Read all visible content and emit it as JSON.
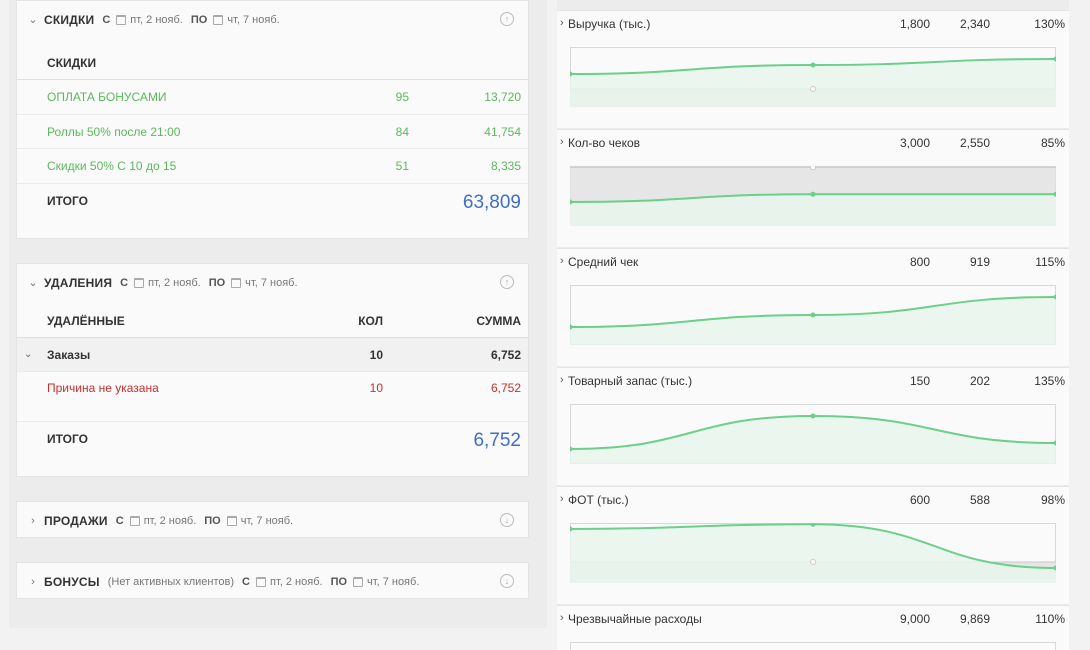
{
  "left": {
    "discounts": {
      "title": "СКИДКИ",
      "from_kw": "С",
      "from_date": "пт, 2 нояб.",
      "to_kw": "ПО",
      "to_date": "чт, 7 нояб.",
      "column_header": "СКИДКИ",
      "rows": [
        {
          "name": "ОПЛАТА БОНУСАМИ",
          "qty": "95",
          "sum": "13,720"
        },
        {
          "name": "Роллы 50% после 21:00",
          "qty": "84",
          "sum": "41,754"
        },
        {
          "name": "Скидки 50% С 10 до 15",
          "qty": "51",
          "sum": "8,335"
        }
      ],
      "total_label": "ИТОГО",
      "total_value": "63,809"
    },
    "deletions": {
      "title": "УДАЛЕНИЯ",
      "from_kw": "С",
      "from_date": "пт, 2 нояб.",
      "to_kw": "ПО",
      "to_date": "чт, 7 нояб.",
      "headers": {
        "name": "УДАЛЁННЫЕ",
        "qty": "КОЛ",
        "sum": "СУММА"
      },
      "group": {
        "name": "Заказы",
        "qty": "10",
        "sum": "6,752"
      },
      "reason": {
        "name": "Причина не указана",
        "qty": "10",
        "sum": "6,752"
      },
      "total_label": "ИТОГО",
      "total_value": "6,752"
    },
    "sales": {
      "title": "ПРОДАЖИ",
      "from_kw": "С",
      "from_date": "пт, 2 нояб.",
      "to_kw": "ПО",
      "to_date": "чт, 7 нояб."
    },
    "bonuses": {
      "title": "БОНУСЫ",
      "note": "(Нет активных клиентов)",
      "from_kw": "С",
      "from_date": "пт, 2 нояб.",
      "to_kw": "ПО",
      "to_date": "чт, 7 нояб."
    }
  },
  "metrics": [
    {
      "name": "Выручка (тыс.)",
      "plan": "1,800",
      "fact": "2,340",
      "pct": "130%",
      "trend": [
        0.55,
        0.7,
        0.8
      ],
      "baseline": 0.3
    },
    {
      "name": "Кол-во чеков",
      "plan": "3,000",
      "fact": "2,550",
      "pct": "85%",
      "trend": [
        0.4,
        0.53,
        0.53
      ],
      "baseline": 0.98
    },
    {
      "name": "Средний чек",
      "plan": "800",
      "fact": "919",
      "pct": "115%",
      "trend": [
        0.3,
        0.5,
        0.8
      ],
      "baseline": 0.0
    },
    {
      "name": "Товарный запас (тыс.)",
      "plan": "150",
      "fact": "202",
      "pct": "135%",
      "trend": [
        0.25,
        0.8,
        0.35
      ],
      "baseline": 0.0
    },
    {
      "name": "ФОТ (тыс.)",
      "plan": "600",
      "fact": "588",
      "pct": "98%",
      "trend": [
        0.9,
        0.98,
        0.25
      ],
      "baseline": 0.35
    },
    {
      "name": "Чрезвычайные расходы",
      "plan": "9,000",
      "fact": "9,869",
      "pct": "110%",
      "trend": [],
      "baseline": 0
    }
  ],
  "colors": {
    "line": "#6ccf8a",
    "fill": "#e8f5ec",
    "grey_fill": "#e6e6e6",
    "total": "#3f6ec7",
    "green_text": "#5cb85c",
    "red_text": "#c9302c"
  }
}
